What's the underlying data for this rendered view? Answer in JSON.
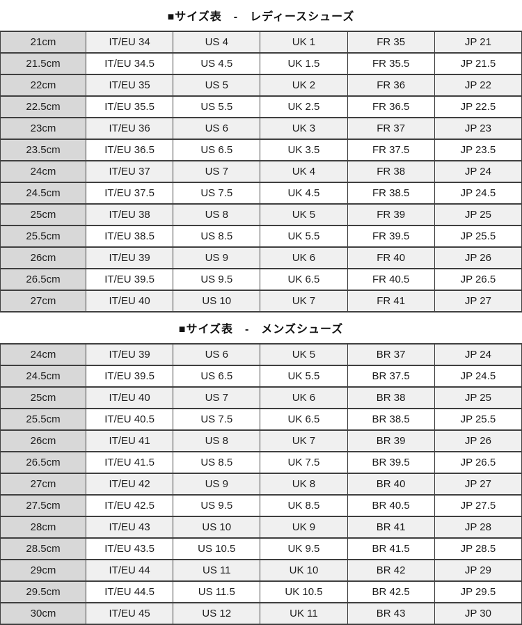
{
  "colors": {
    "first_column_bg": "#d8d8d8",
    "odd_row_bg": "#f0f0f0",
    "even_row_bg": "#ffffff",
    "border": "#3f3f3f",
    "text": "#1c1c1c"
  },
  "tables": [
    {
      "id": "ladies",
      "title": "■サイズ表　-　レディースシューズ",
      "rows": [
        [
          "21cm",
          "IT/EU 34",
          "US 4",
          "UK 1",
          "FR 35",
          "JP 21"
        ],
        [
          "21.5cm",
          "IT/EU 34.5",
          "US 4.5",
          "UK 1.5",
          "FR 35.5",
          "JP 21.5"
        ],
        [
          "22cm",
          "IT/EU 35",
          "US 5",
          "UK 2",
          "FR 36",
          "JP 22"
        ],
        [
          "22.5cm",
          "IT/EU 35.5",
          "US 5.5",
          "UK 2.5",
          "FR 36.5",
          "JP 22.5"
        ],
        [
          "23cm",
          "IT/EU 36",
          "US 6",
          "UK 3",
          "FR 37",
          "JP 23"
        ],
        [
          "23.5cm",
          "IT/EU 36.5",
          "US 6.5",
          "UK 3.5",
          "FR 37.5",
          "JP 23.5"
        ],
        [
          "24cm",
          "IT/EU 37",
          "US 7",
          "UK 4",
          "FR 38",
          "JP 24"
        ],
        [
          "24.5cm",
          "IT/EU 37.5",
          "US 7.5",
          "UK 4.5",
          "FR 38.5",
          "JP 24.5"
        ],
        [
          "25cm",
          "IT/EU 38",
          "US 8",
          "UK 5",
          "FR 39",
          "JP 25"
        ],
        [
          "25.5cm",
          "IT/EU 38.5",
          "US 8.5",
          "UK 5.5",
          "FR 39.5",
          "JP 25.5"
        ],
        [
          "26cm",
          "IT/EU 39",
          "US 9",
          "UK 6",
          "FR 40",
          "JP 26"
        ],
        [
          "26.5cm",
          "IT/EU 39.5",
          "US 9.5",
          "UK 6.5",
          "FR 40.5",
          "JP 26.5"
        ],
        [
          "27cm",
          "IT/EU 40",
          "US 10",
          "UK 7",
          "FR 41",
          "JP 27"
        ]
      ]
    },
    {
      "id": "mens",
      "title": "■サイズ表　-　メンズシューズ",
      "rows": [
        [
          "24cm",
          "IT/EU 39",
          "US 6",
          "UK 5",
          "BR 37",
          "JP 24"
        ],
        [
          "24.5cm",
          "IT/EU 39.5",
          "US 6.5",
          "UK 5.5",
          "BR 37.5",
          "JP 24.5"
        ],
        [
          "25cm",
          "IT/EU 40",
          "US 7",
          "UK 6",
          "BR 38",
          "JP 25"
        ],
        [
          "25.5cm",
          "IT/EU 40.5",
          "US 7.5",
          "UK 6.5",
          "BR 38.5",
          "JP 25.5"
        ],
        [
          "26cm",
          "IT/EU 41",
          "US 8",
          "UK 7",
          "BR 39",
          "JP 26"
        ],
        [
          "26.5cm",
          "IT/EU 41.5",
          "US 8.5",
          "UK 7.5",
          "BR 39.5",
          "JP 26.5"
        ],
        [
          "27cm",
          "IT/EU 42",
          "US 9",
          "UK 8",
          "BR 40",
          "JP 27"
        ],
        [
          "27.5cm",
          "IT/EU 42.5",
          "US 9.5",
          "UK 8.5",
          "BR 40.5",
          "JP 27.5"
        ],
        [
          "28cm",
          "IT/EU 43",
          "US 10",
          "UK 9",
          "BR 41",
          "JP 28"
        ],
        [
          "28.5cm",
          "IT/EU 43.5",
          "US 10.5",
          "UK 9.5",
          "BR 41.5",
          "JP 28.5"
        ],
        [
          "29cm",
          "IT/EU 44",
          "US 11",
          "UK 10",
          "BR 42",
          "JP 29"
        ],
        [
          "29.5cm",
          "IT/EU 44.5",
          "US 11.5",
          "UK 10.5",
          "BR 42.5",
          "JP 29.5"
        ],
        [
          "30cm",
          "IT/EU 45",
          "US 12",
          "UK 11",
          "BR 43",
          "JP 30"
        ]
      ]
    }
  ]
}
